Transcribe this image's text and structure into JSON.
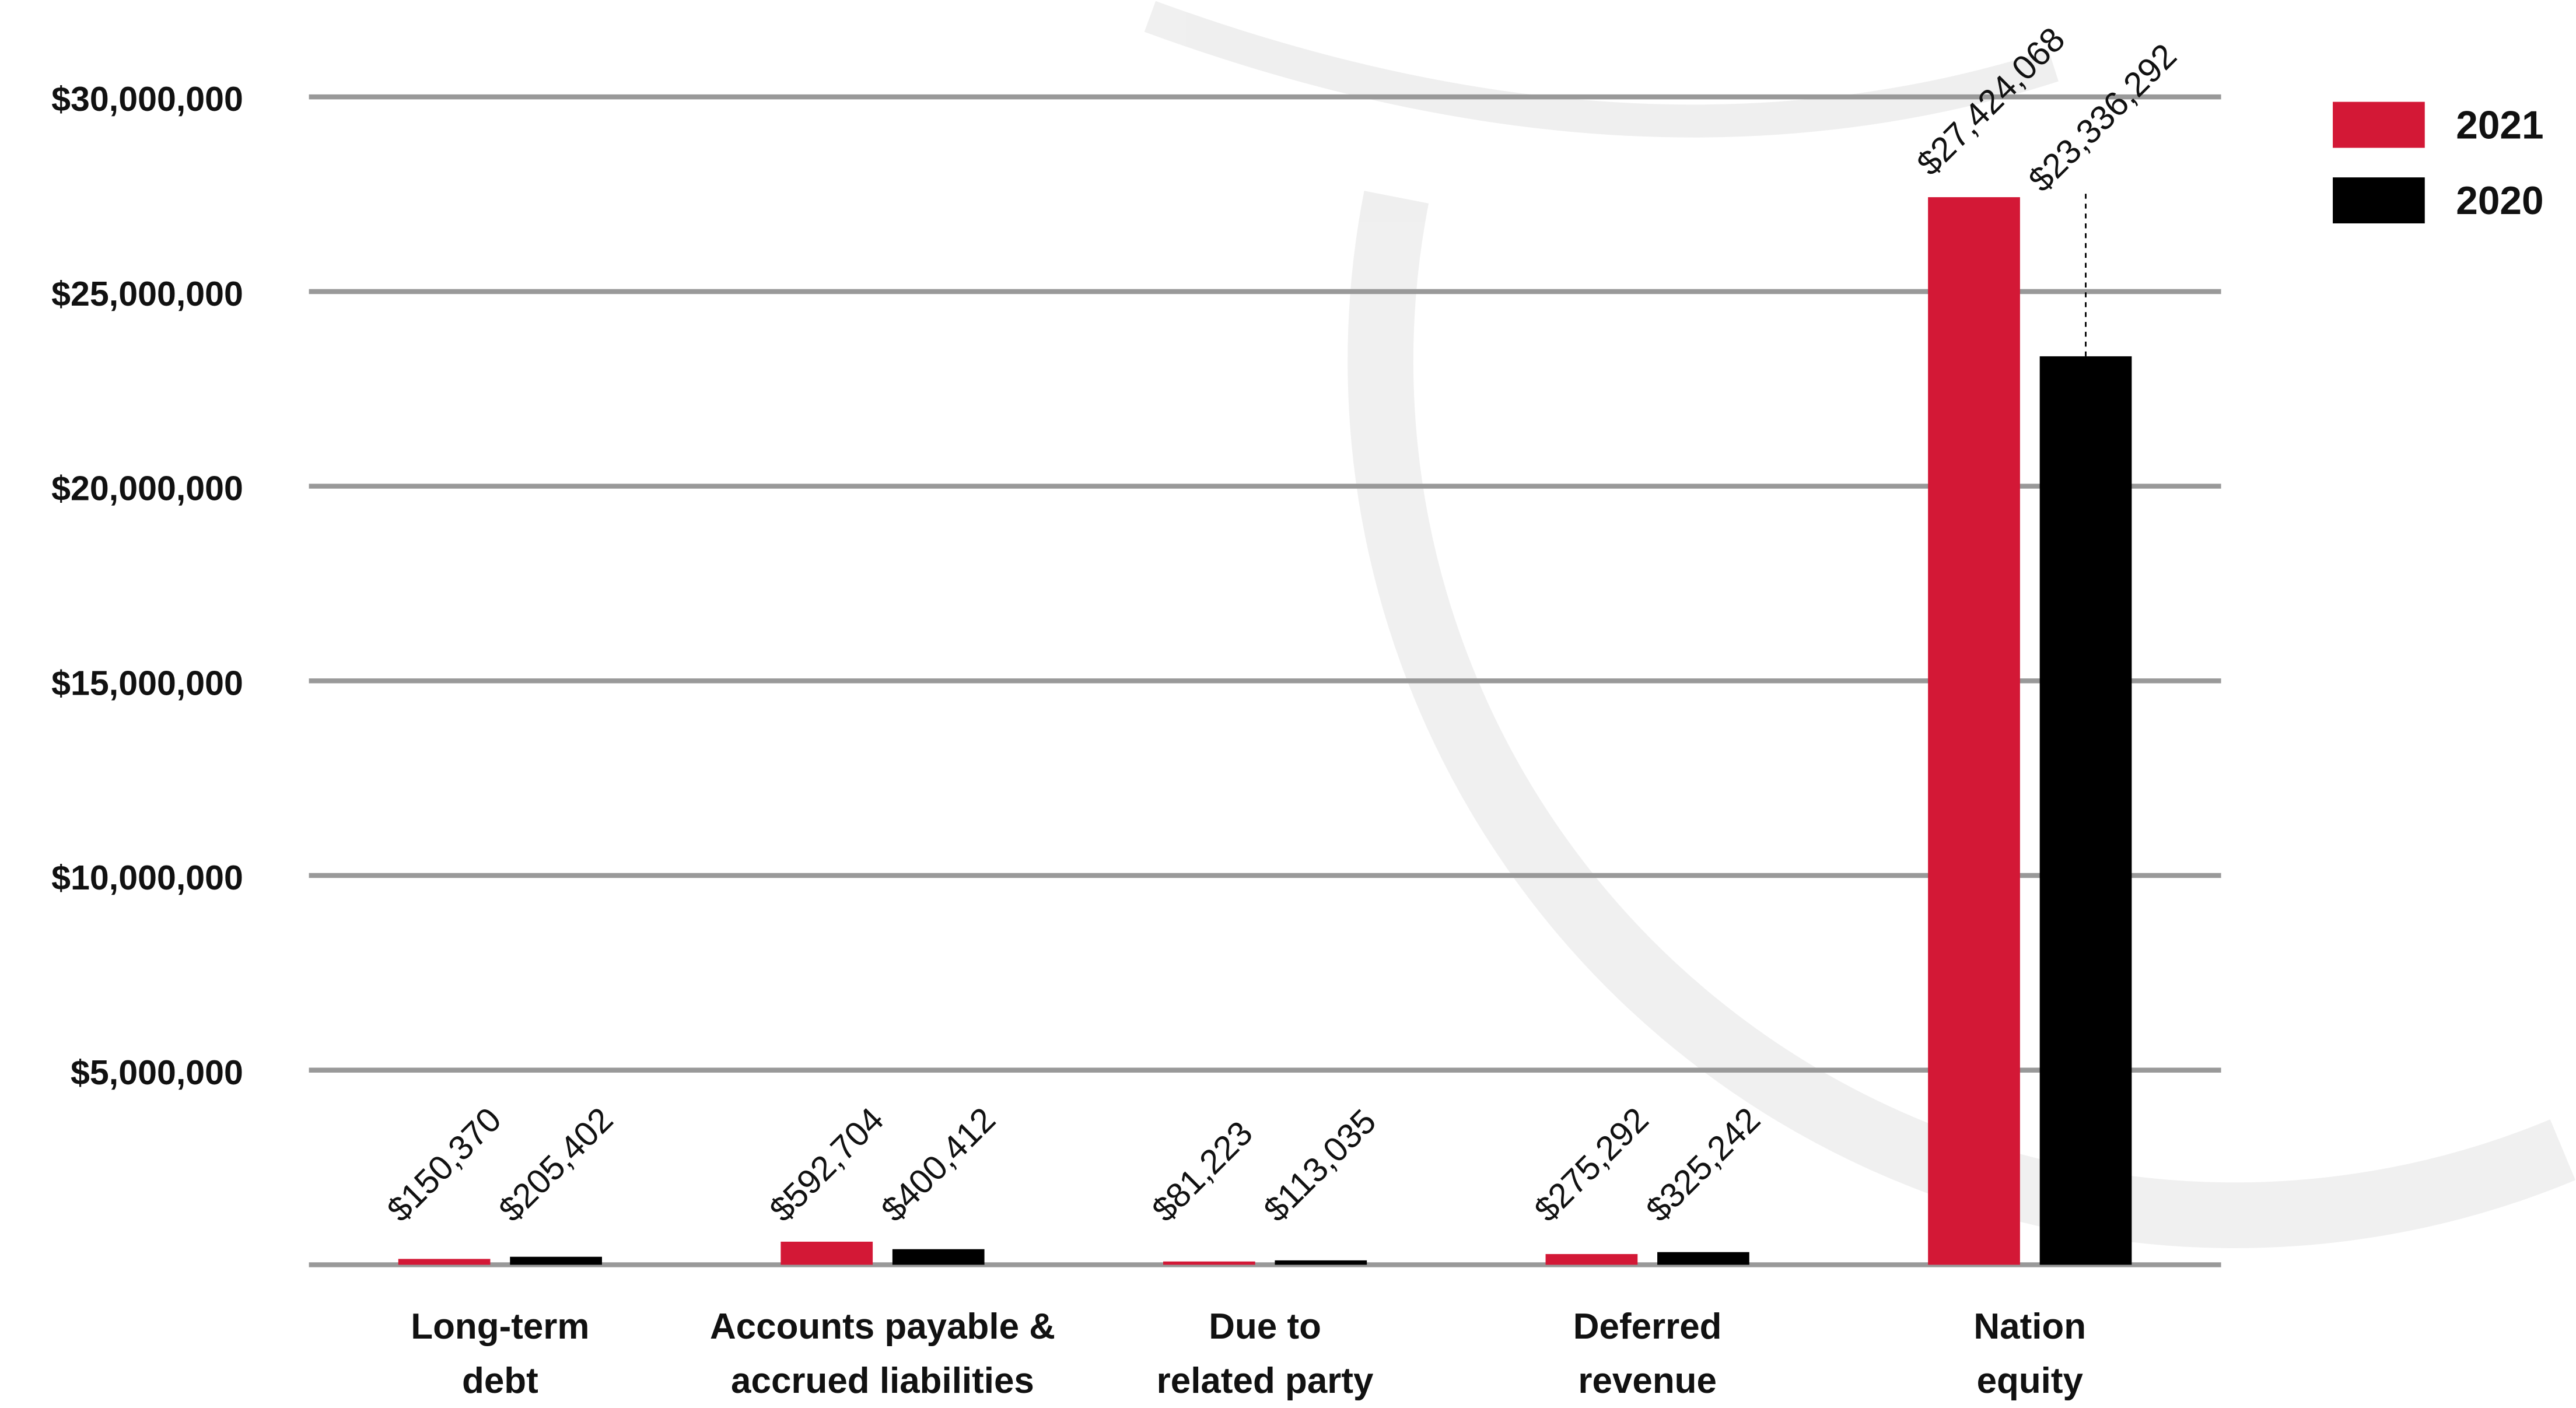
{
  "chart_data": {
    "type": "bar",
    "categories": [
      [
        "Long-term",
        "debt"
      ],
      [
        "Accounts payable &",
        "accrued liabilities"
      ],
      [
        "Due to",
        "related party"
      ],
      [
        "Deferred",
        "revenue"
      ],
      [
        "Nation",
        "equity"
      ]
    ],
    "series": [
      {
        "name": "2021",
        "color": "#d31836",
        "values": [
          150370,
          592704,
          81223,
          275292,
          27424068
        ],
        "value_labels": [
          "$150,370",
          "$592,704",
          "$81,223",
          "$275,292",
          "$27,424,068"
        ]
      },
      {
        "name": "2020",
        "color": "#000000",
        "values": [
          205402,
          400412,
          113035,
          325242,
          23336292
        ],
        "value_labels": [
          "$205,402",
          "$400,412",
          "$113,035",
          "$325,242",
          "$23,336,292"
        ]
      }
    ],
    "ylim": [
      0,
      30000000
    ],
    "yticks": [
      {
        "value": 5000000,
        "label": "$5,000,000"
      },
      {
        "value": 10000000,
        "label": "$10,000,000"
      },
      {
        "value": 15000000,
        "label": "$15,000,000"
      },
      {
        "value": 20000000,
        "label": "$20,000,000"
      },
      {
        "value": 25000000,
        "label": "$25,000,000"
      },
      {
        "value": 30000000,
        "label": "$30,000,000"
      }
    ],
    "grid": true,
    "legend": "top-right"
  }
}
